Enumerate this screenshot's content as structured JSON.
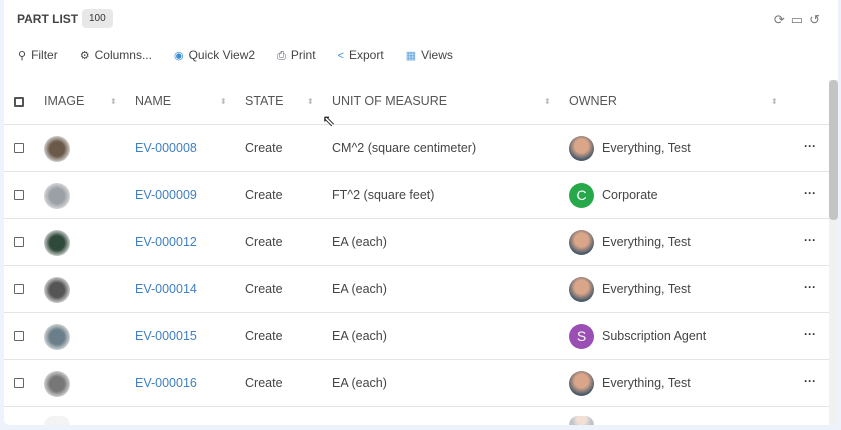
{
  "header": {
    "title": "PART LIST",
    "count": "100"
  },
  "toolbar": [
    {
      "icon": "search-icon",
      "label": "Filter"
    },
    {
      "icon": "gear-icon",
      "label": "Columns..."
    },
    {
      "icon": "eye-icon",
      "label": "Quick View2"
    },
    {
      "icon": "print-icon",
      "label": "Print"
    },
    {
      "icon": "share-icon",
      "label": "Export"
    },
    {
      "icon": "grid-icon",
      "label": "Views"
    }
  ],
  "columns": [
    "IMAGE",
    "NAME",
    "STATE",
    "UNIT OF MEASURE",
    "OWNER"
  ],
  "rows": [
    {
      "name": "EV-000008",
      "state": "Create",
      "uom": "CM^2 (square centimeter)",
      "owner": "Everything, Test",
      "avatar": "photo",
      "thumb": "#6b5a4a"
    },
    {
      "name": "EV-000009",
      "state": "Create",
      "uom": "FT^2 (square feet)",
      "owner": "Corporate",
      "avatar": "C",
      "avatar_color": "#27a84a",
      "thumb": "#9aa0a6"
    },
    {
      "name": "EV-000012",
      "state": "Create",
      "uom": "EA (each)",
      "owner": "Everything, Test",
      "avatar": "photo",
      "thumb": "#2f4a3a"
    },
    {
      "name": "EV-000014",
      "state": "Create",
      "uom": "EA (each)",
      "owner": "Everything, Test",
      "avatar": "photo",
      "thumb": "#555"
    },
    {
      "name": "EV-000015",
      "state": "Create",
      "uom": "EA (each)",
      "owner": "Subscription Agent",
      "avatar": "S",
      "avatar_color": "#9b4fb5",
      "thumb": "#6a7f8a"
    },
    {
      "name": "EV-000016",
      "state": "Create",
      "uom": "EA (each)",
      "owner": "Everything, Test",
      "avatar": "photo",
      "thumb": "#777"
    }
  ],
  "colors": {
    "link": "#3f7fc2"
  }
}
